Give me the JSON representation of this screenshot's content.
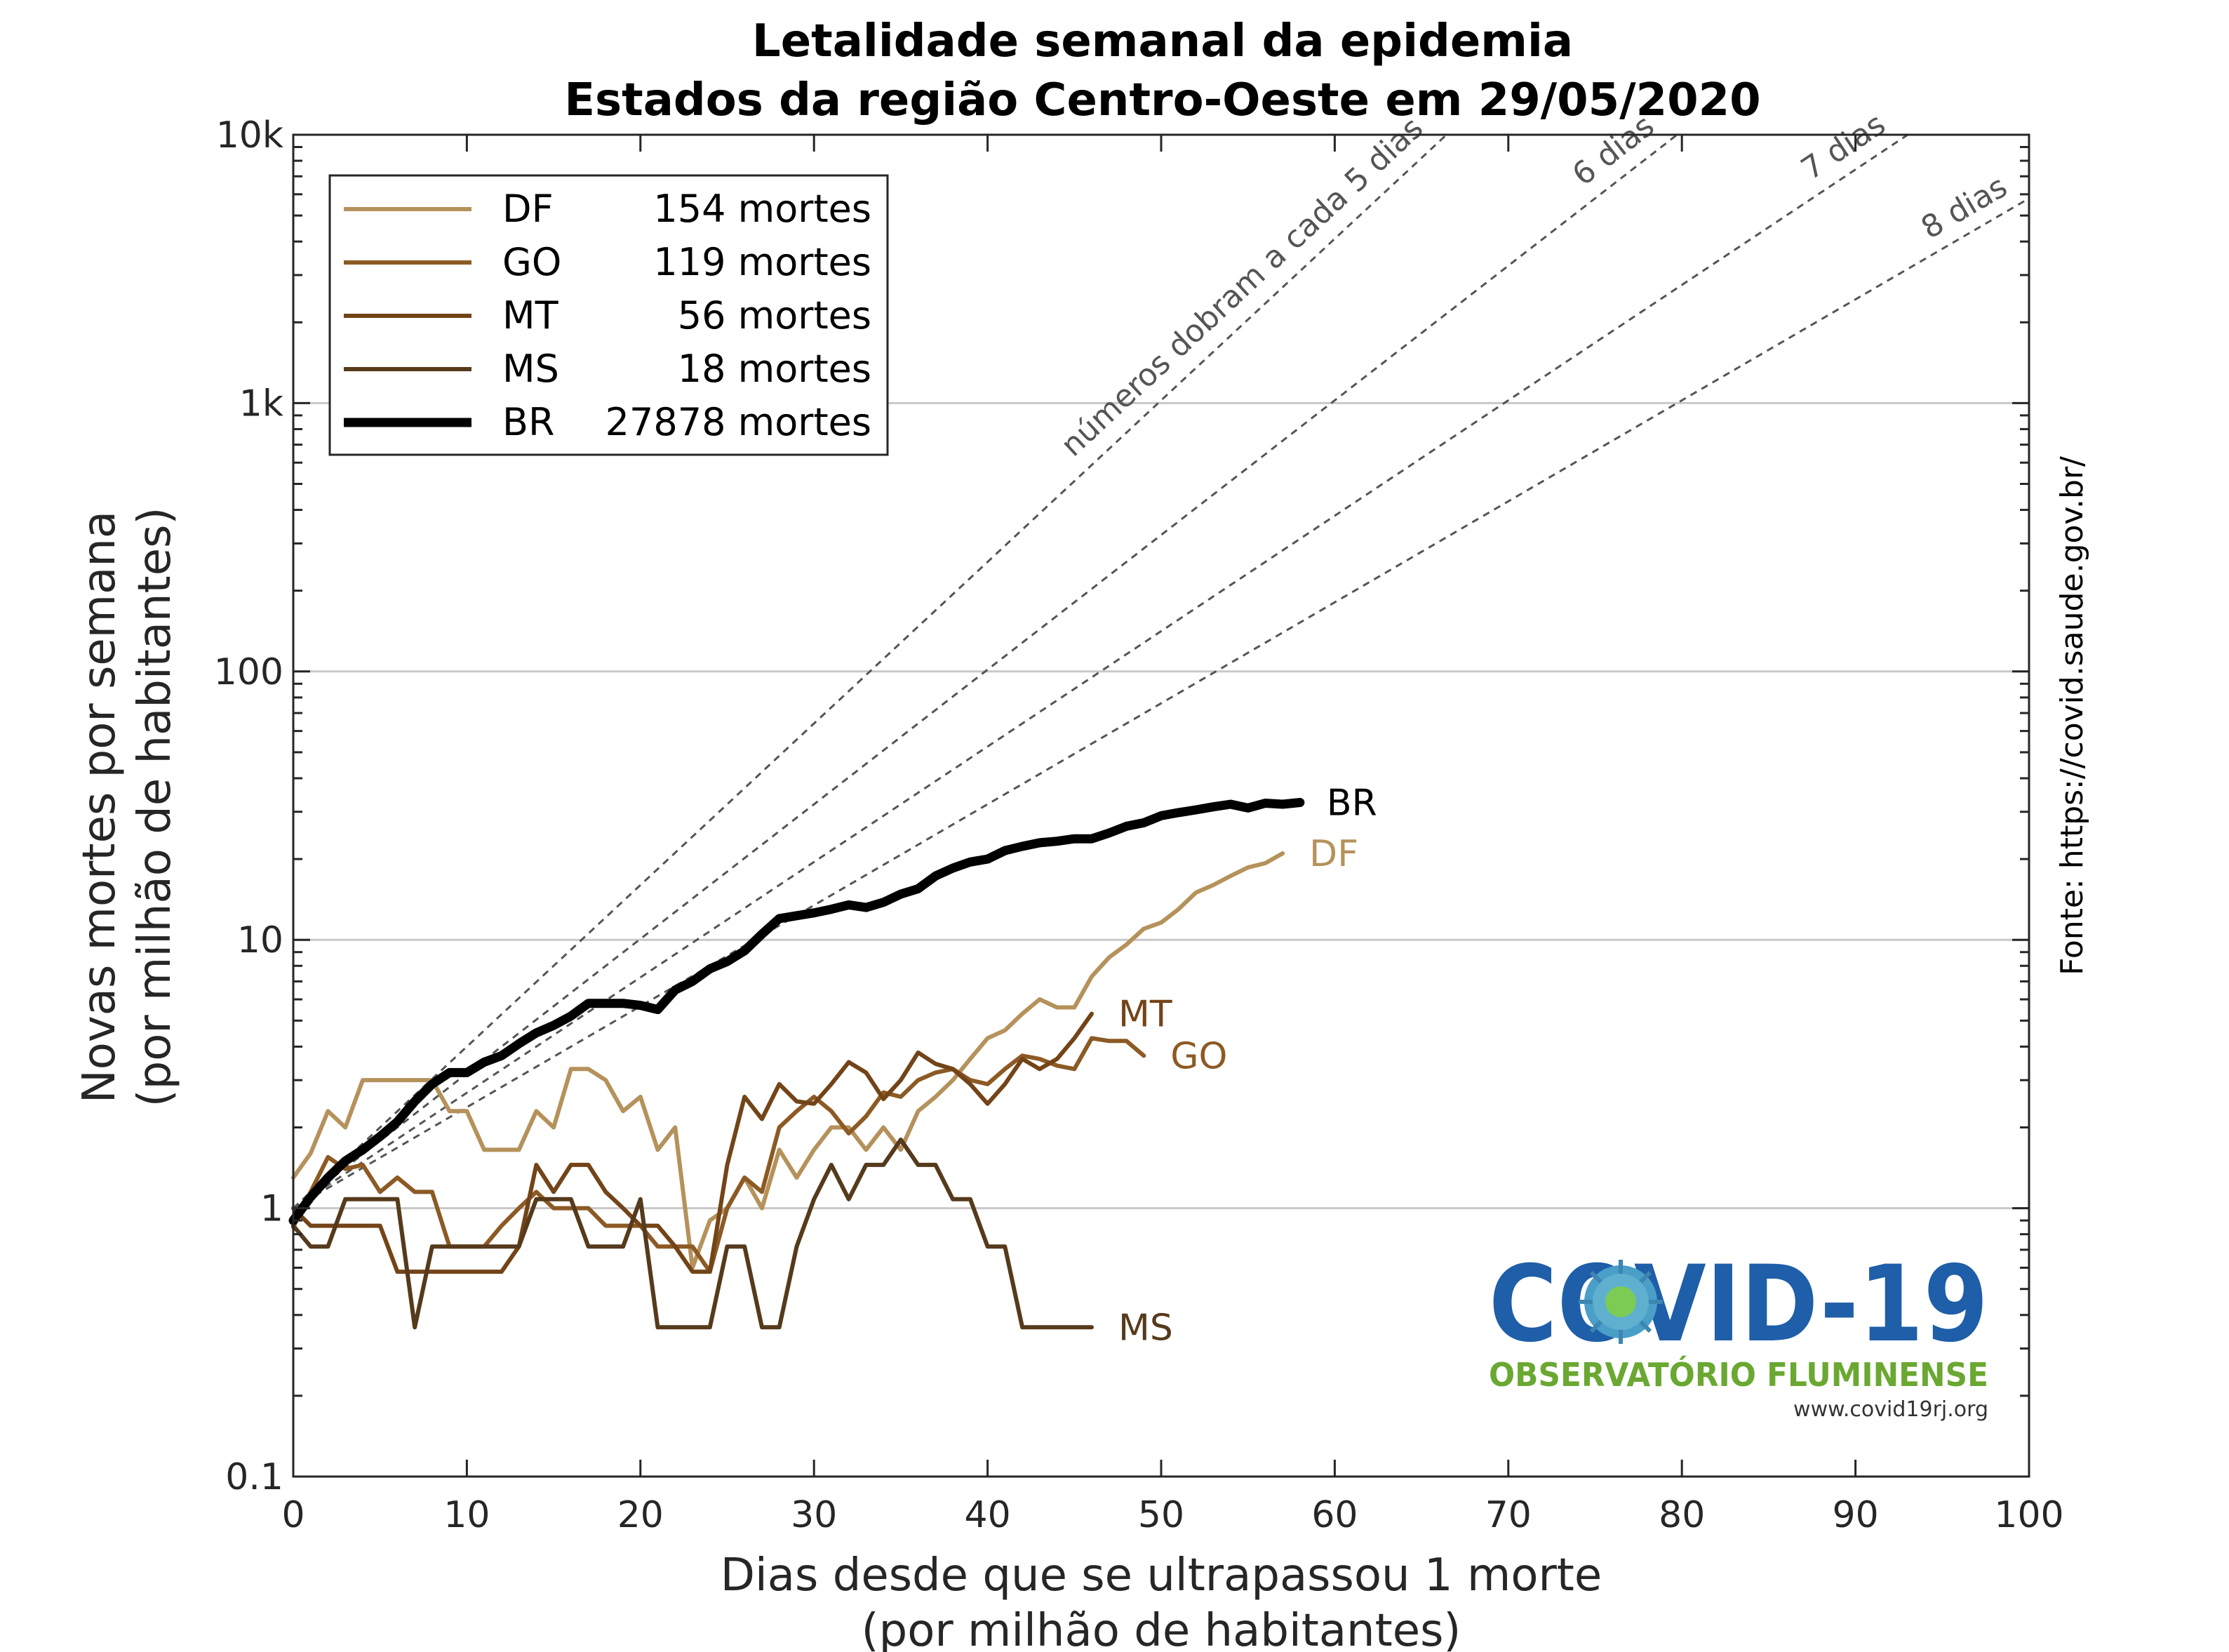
{
  "title": [
    "Letalidade semanal da epidemia",
    "Estados da região Centro-Oeste em 29/05/2020"
  ],
  "source": "Fonte: https://covid.saude.gov.br/",
  "chart_data": {
    "type": "line",
    "xlabel": [
      "Dias desde que se ultrapassou 1 morte",
      "(por milhão de habitantes)"
    ],
    "ylabel": [
      "Novas mortes por semana",
      "(por milhão de habitantes)"
    ],
    "xlim": [
      0,
      100
    ],
    "ylim": [
      0.1,
      10000
    ],
    "yscale": "log",
    "grid": "horizontal",
    "legend_placement": "top-left",
    "x_ticks": [
      0,
      10,
      20,
      30,
      40,
      50,
      60,
      70,
      80,
      90,
      100
    ],
    "y_ticks": [
      {
        "value": 0.1,
        "label": "0.1"
      },
      {
        "value": 1,
        "label": "1"
      },
      {
        "value": 10,
        "label": "10"
      },
      {
        "value": 100,
        "label": "100"
      },
      {
        "value": 1000,
        "label": "1k"
      },
      {
        "value": 10000,
        "label": "10k"
      }
    ],
    "guides": [
      {
        "doubling_days": 5,
        "label": "números dobram a cada 5 dias"
      },
      {
        "doubling_days": 6,
        "label": "6 dias"
      },
      {
        "doubling_days": 7,
        "label": "7 dias"
      },
      {
        "doubling_days": 8,
        "label": "8 dias"
      }
    ],
    "series": [
      {
        "name": "DF",
        "legend_count": "154 mortes",
        "color": "#b5925b",
        "width": 6,
        "points": [
          [
            0,
            1.3
          ],
          [
            1,
            1.6
          ],
          [
            2,
            2.3
          ],
          [
            3,
            2.0
          ],
          [
            4,
            3.0
          ],
          [
            5,
            3.0
          ],
          [
            6,
            3.0
          ],
          [
            7,
            3.0
          ],
          [
            8,
            3.0
          ],
          [
            9,
            2.3
          ],
          [
            10,
            2.3
          ],
          [
            11,
            1.65
          ],
          [
            12,
            1.65
          ],
          [
            13,
            1.65
          ],
          [
            14,
            2.3
          ],
          [
            15,
            2.0
          ],
          [
            16,
            3.3
          ],
          [
            17,
            3.3
          ],
          [
            18,
            3.0
          ],
          [
            19,
            2.3
          ],
          [
            20,
            2.6
          ],
          [
            21,
            1.65
          ],
          [
            22,
            2.0
          ],
          [
            23,
            0.6
          ],
          [
            24,
            0.9
          ],
          [
            25,
            1.0
          ],
          [
            26,
            1.3
          ],
          [
            27,
            1.0
          ],
          [
            28,
            1.65
          ],
          [
            29,
            1.3
          ],
          [
            30,
            1.65
          ],
          [
            31,
            2.0
          ],
          [
            32,
            2.0
          ],
          [
            33,
            1.65
          ],
          [
            34,
            2.0
          ],
          [
            35,
            1.65
          ],
          [
            36,
            2.3
          ],
          [
            37,
            2.6
          ],
          [
            38,
            3.0
          ],
          [
            39,
            3.6
          ],
          [
            40,
            4.3
          ],
          [
            41,
            4.6
          ],
          [
            42,
            5.3
          ],
          [
            43,
            6.0
          ],
          [
            44,
            5.6
          ],
          [
            45,
            5.6
          ],
          [
            46,
            7.3
          ],
          [
            47,
            8.6
          ],
          [
            48,
            9.6
          ],
          [
            49,
            11.0
          ],
          [
            50,
            11.6
          ],
          [
            51,
            13.0
          ],
          [
            52,
            15.0
          ],
          [
            53,
            16.0
          ],
          [
            54,
            17.3
          ],
          [
            55,
            18.6
          ],
          [
            56,
            19.3
          ],
          [
            57,
            21.0
          ]
        ]
      },
      {
        "name": "GO",
        "legend_count": "119 mortes",
        "color": "#8c5a24",
        "width": 6,
        "points": [
          [
            0,
            0.85
          ],
          [
            1,
            1.15
          ],
          [
            2,
            1.55
          ],
          [
            3,
            1.4
          ],
          [
            4,
            1.45
          ],
          [
            5,
            1.15
          ],
          [
            6,
            1.3
          ],
          [
            7,
            1.15
          ],
          [
            8,
            1.15
          ],
          [
            9,
            0.72
          ],
          [
            10,
            0.72
          ],
          [
            11,
            0.72
          ],
          [
            12,
            0.86
          ],
          [
            13,
            1.0
          ],
          [
            14,
            1.15
          ],
          [
            15,
            1.0
          ],
          [
            16,
            1.0
          ],
          [
            17,
            1.0
          ],
          [
            18,
            0.86
          ],
          [
            19,
            0.86
          ],
          [
            20,
            0.86
          ],
          [
            21,
            0.72
          ],
          [
            22,
            0.72
          ],
          [
            23,
            0.72
          ],
          [
            24,
            0.58
          ],
          [
            25,
            1.0
          ],
          [
            26,
            1.3
          ],
          [
            27,
            1.15
          ],
          [
            28,
            2.0
          ],
          [
            29,
            2.3
          ],
          [
            30,
            2.6
          ],
          [
            31,
            2.3
          ],
          [
            32,
            1.9
          ],
          [
            33,
            2.2
          ],
          [
            34,
            2.7
          ],
          [
            35,
            2.6
          ],
          [
            36,
            3.0
          ],
          [
            37,
            3.2
          ],
          [
            38,
            3.3
          ],
          [
            39,
            3.0
          ],
          [
            40,
            2.9
          ],
          [
            41,
            3.3
          ],
          [
            42,
            3.7
          ],
          [
            43,
            3.6
          ],
          [
            44,
            3.4
          ],
          [
            45,
            3.3
          ],
          [
            46,
            4.3
          ],
          [
            47,
            4.2
          ],
          [
            48,
            4.2
          ],
          [
            49,
            3.7
          ]
        ]
      },
      {
        "name": "MT",
        "legend_count": "56 mortes",
        "color": "#734418",
        "width": 6,
        "points": [
          [
            0,
            1.0
          ],
          [
            1,
            0.86
          ],
          [
            2,
            0.86
          ],
          [
            3,
            0.86
          ],
          [
            4,
            0.86
          ],
          [
            5,
            0.86
          ],
          [
            6,
            0.58
          ],
          [
            7,
            0.58
          ],
          [
            8,
            0.58
          ],
          [
            9,
            0.58
          ],
          [
            10,
            0.58
          ],
          [
            11,
            0.58
          ],
          [
            12,
            0.58
          ],
          [
            13,
            0.72
          ],
          [
            14,
            1.45
          ],
          [
            15,
            1.15
          ],
          [
            16,
            1.45
          ],
          [
            17,
            1.45
          ],
          [
            18,
            1.15
          ],
          [
            19,
            1.0
          ],
          [
            20,
            0.86
          ],
          [
            21,
            0.86
          ],
          [
            22,
            0.72
          ],
          [
            23,
            0.58
          ],
          [
            24,
            0.58
          ],
          [
            25,
            1.45
          ],
          [
            26,
            2.6
          ],
          [
            27,
            2.15
          ],
          [
            28,
            2.9
          ],
          [
            29,
            2.5
          ],
          [
            30,
            2.45
          ],
          [
            31,
            2.9
          ],
          [
            32,
            3.5
          ],
          [
            33,
            3.2
          ],
          [
            34,
            2.55
          ],
          [
            35,
            3.0
          ],
          [
            36,
            3.8
          ],
          [
            37,
            3.45
          ],
          [
            38,
            3.3
          ],
          [
            39,
            2.9
          ],
          [
            40,
            2.45
          ],
          [
            41,
            2.9
          ],
          [
            42,
            3.6
          ],
          [
            43,
            3.3
          ],
          [
            44,
            3.6
          ],
          [
            45,
            4.3
          ],
          [
            46,
            5.3
          ]
        ]
      },
      {
        "name": "MS",
        "legend_count": "18 mortes",
        "color": "#563a1c",
        "width": 6,
        "points": [
          [
            0,
            0.86
          ],
          [
            1,
            0.72
          ],
          [
            2,
            0.72
          ],
          [
            3,
            1.08
          ],
          [
            4,
            1.08
          ],
          [
            5,
            1.08
          ],
          [
            6,
            1.08
          ],
          [
            7,
            0.36
          ],
          [
            8,
            0.72
          ],
          [
            9,
            0.72
          ],
          [
            10,
            0.72
          ],
          [
            11,
            0.72
          ],
          [
            12,
            0.72
          ],
          [
            13,
            0.72
          ],
          [
            14,
            1.08
          ],
          [
            15,
            1.08
          ],
          [
            16,
            1.08
          ],
          [
            17,
            0.72
          ],
          [
            18,
            0.72
          ],
          [
            19,
            0.72
          ],
          [
            20,
            1.08
          ],
          [
            21,
            0.36
          ],
          [
            22,
            0.36
          ],
          [
            23,
            0.36
          ],
          [
            24,
            0.36
          ],
          [
            25,
            0.72
          ],
          [
            26,
            0.72
          ],
          [
            27,
            0.36
          ],
          [
            28,
            0.36
          ],
          [
            29,
            0.72
          ],
          [
            30,
            1.08
          ],
          [
            31,
            1.45
          ],
          [
            32,
            1.08
          ],
          [
            33,
            1.45
          ],
          [
            34,
            1.45
          ],
          [
            35,
            1.8
          ],
          [
            36,
            1.45
          ],
          [
            37,
            1.45
          ],
          [
            38,
            1.08
          ],
          [
            39,
            1.08
          ],
          [
            40,
            0.72
          ],
          [
            41,
            0.72
          ],
          [
            42,
            0.36
          ],
          [
            43,
            0.36
          ],
          [
            44,
            0.36
          ],
          [
            45,
            0.36
          ],
          [
            46,
            0.36
          ]
        ]
      },
      {
        "name": "BR",
        "legend_count": "27878 mortes",
        "color": "#000000",
        "width": 13,
        "points": [
          [
            0,
            0.9
          ],
          [
            1,
            1.1
          ],
          [
            2,
            1.3
          ],
          [
            3,
            1.5
          ],
          [
            4,
            1.65
          ],
          [
            5,
            1.85
          ],
          [
            6,
            2.1
          ],
          [
            7,
            2.5
          ],
          [
            8,
            2.9
          ],
          [
            9,
            3.2
          ],
          [
            10,
            3.2
          ],
          [
            11,
            3.5
          ],
          [
            12,
            3.7
          ],
          [
            13,
            4.1
          ],
          [
            14,
            4.5
          ],
          [
            15,
            4.8
          ],
          [
            16,
            5.2
          ],
          [
            17,
            5.8
          ],
          [
            18,
            5.8
          ],
          [
            19,
            5.8
          ],
          [
            20,
            5.7
          ],
          [
            21,
            5.5
          ],
          [
            22,
            6.5
          ],
          [
            23,
            7.0
          ],
          [
            24,
            7.8
          ],
          [
            25,
            8.3
          ],
          [
            26,
            9.1
          ],
          [
            27,
            10.5
          ],
          [
            28,
            12.0
          ],
          [
            29,
            12.3
          ],
          [
            30,
            12.6
          ],
          [
            31,
            13.0
          ],
          [
            32,
            13.5
          ],
          [
            33,
            13.2
          ],
          [
            34,
            13.8
          ],
          [
            35,
            14.8
          ],
          [
            36,
            15.5
          ],
          [
            37,
            17.3
          ],
          [
            38,
            18.5
          ],
          [
            39,
            19.5
          ],
          [
            40,
            20.0
          ],
          [
            41,
            21.5
          ],
          [
            42,
            22.3
          ],
          [
            43,
            23.0
          ],
          [
            44,
            23.3
          ],
          [
            45,
            23.8
          ],
          [
            46,
            23.8
          ],
          [
            47,
            25.0
          ],
          [
            48,
            26.5
          ],
          [
            49,
            27.3
          ],
          [
            50,
            29.0
          ],
          [
            51,
            29.8
          ],
          [
            52,
            30.5
          ],
          [
            53,
            31.3
          ],
          [
            54,
            32.0
          ],
          [
            55,
            31.0
          ],
          [
            56,
            32.3
          ],
          [
            57,
            32.0
          ],
          [
            58,
            32.5
          ]
        ]
      }
    ],
    "end_labels": [
      {
        "text": "BR",
        "color": "#000000",
        "x": 58,
        "y": 32.5
      },
      {
        "text": "DF",
        "color": "#b5925b",
        "x": 57,
        "y": 21.0
      },
      {
        "text": "MT",
        "color": "#734418",
        "x": 46,
        "y": 5.3
      },
      {
        "text": "GO",
        "color": "#8c5a24",
        "x": 49,
        "y": 3.7
      },
      {
        "text": "MS",
        "color": "#563a1c",
        "x": 46,
        "y": 0.36
      }
    ]
  },
  "logo": {
    "main": "COVID-19",
    "sub": "OBSERVATÓRIO FLUMINENSE",
    "url": "www.covid19rj.org"
  }
}
